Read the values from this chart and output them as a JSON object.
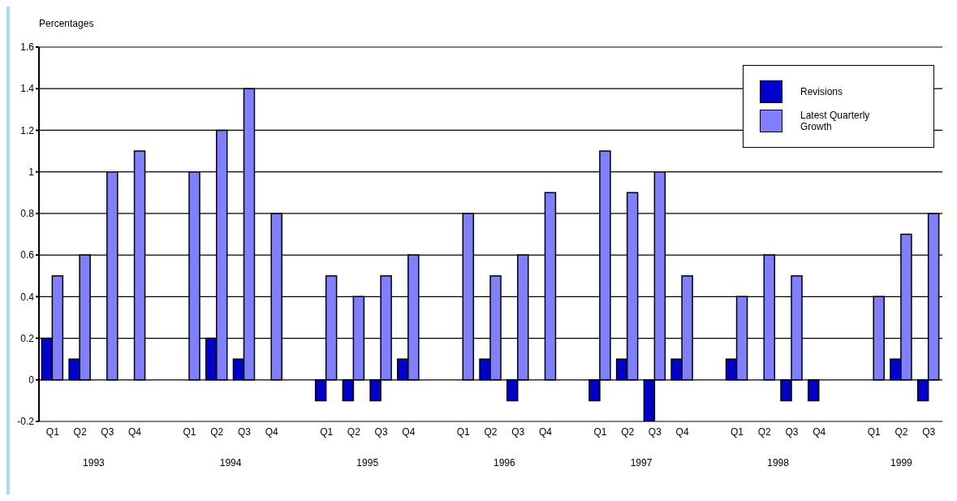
{
  "chart_data": {
    "type": "bar",
    "ylabel": "Percentages",
    "categories": [
      "Q1",
      "Q2",
      "Q3",
      "Q4",
      null,
      "Q1",
      "Q2",
      "Q3",
      "Q4",
      null,
      "Q1",
      "Q2",
      "Q3",
      "Q4",
      null,
      "Q1",
      "Q2",
      "Q3",
      "Q4",
      null,
      "Q1",
      "Q2",
      "Q3",
      "Q4",
      null,
      "Q1",
      "Q2",
      "Q3",
      "Q4",
      null,
      "Q1",
      "Q2",
      "Q3"
    ],
    "series": [
      {
        "name": "Revisions",
        "color": "#0000cc",
        "values": [
          0.2,
          0.1,
          0,
          0,
          null,
          0,
          0.2,
          0.1,
          0,
          null,
          -0.1,
          -0.1,
          -0.1,
          0.1,
          null,
          0,
          0.1,
          -0.1,
          0,
          null,
          -0.1,
          0.1,
          -0.2,
          0.1,
          null,
          0.1,
          0,
          -0.1,
          -0.1,
          null,
          0,
          0.1,
          -0.1
        ]
      },
      {
        "name": "Latest Quarterly Growth",
        "color": "#8080ff",
        "values": [
          0.5,
          0.6,
          1.0,
          1.1,
          null,
          1.0,
          1.2,
          1.4,
          0.8,
          null,
          0.5,
          0.4,
          0.5,
          0.6,
          null,
          0.8,
          0.5,
          0.6,
          0.9,
          null,
          1.1,
          0.9,
          1.0,
          0.5,
          null,
          0.4,
          0.6,
          0.5,
          0,
          null,
          0.4,
          0.7,
          0.8
        ]
      }
    ],
    "annotations": [
      "1993",
      "1994",
      "1995",
      "1996",
      "1997",
      "1998",
      "1999"
    ],
    "ylim": [
      -0.2,
      1.6
    ],
    "yticks": [
      -0.2,
      0,
      0.2,
      0.4,
      0.6,
      0.8,
      1,
      1.2,
      1.4,
      1.6
    ],
    "grid": "y",
    "legend": "top right"
  }
}
